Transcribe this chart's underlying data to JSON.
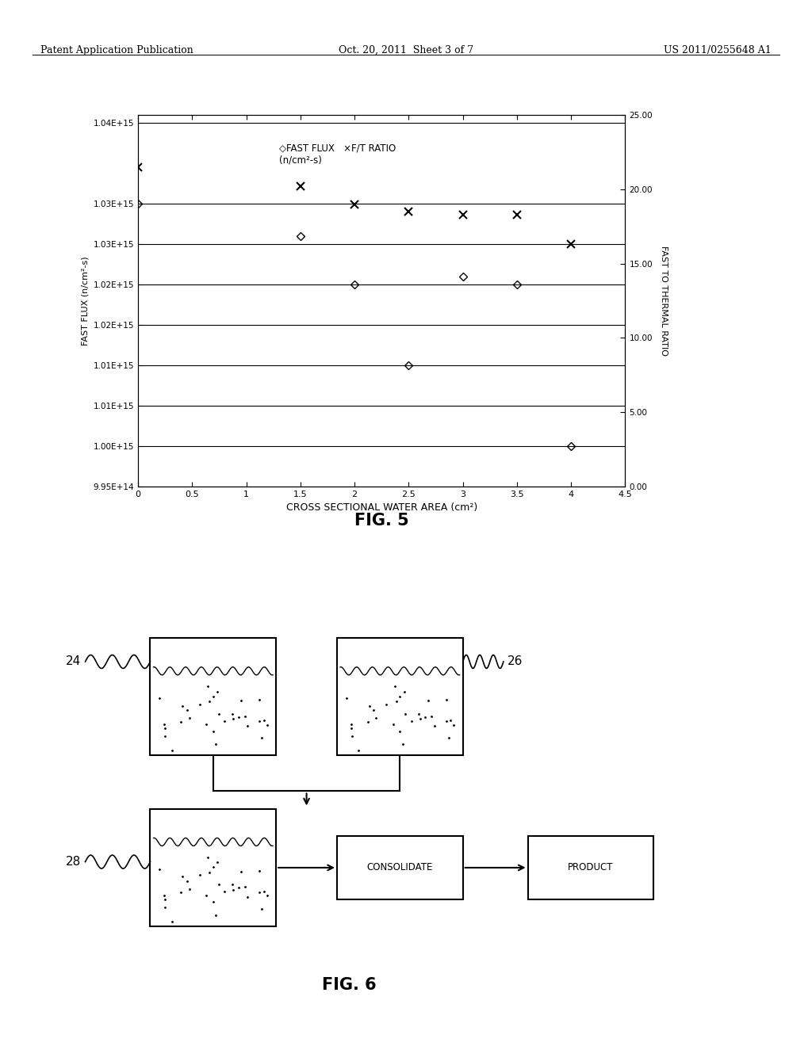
{
  "header_left": "Patent Application Publication",
  "header_center": "Oct. 20, 2011  Sheet 3 of 7",
  "header_right": "US 2011/0255648 A1",
  "fig5": {
    "fast_flux_x": [
      0,
      1.5,
      2.0,
      2.5,
      3.0,
      3.5,
      4.0
    ],
    "fast_flux_y": [
      1030000000000000.0,
      1026000000000000.0,
      1020000000000000.0,
      1010000000000000.0,
      1021000000000000.0,
      1020000000000000.0,
      1000000000000000.0
    ],
    "ft_ratio_x": [
      0,
      1.5,
      2.0,
      2.5,
      3.0,
      3.5,
      4.0
    ],
    "ft_ratio_y": [
      21.5,
      20.2,
      19.0,
      18.5,
      18.3,
      18.3,
      16.3
    ],
    "ylabel_left": "FAST FLUX (n/cm²-s)",
    "ylabel_right": "FAST TO THERMAL RATIO",
    "xlabel": "CROSS SECTIONAL WATER AREA (cm²)",
    "ylim_left": [
      995000000000000.0,
      1041000000000000.0
    ],
    "ylim_right": [
      0.0,
      25.0
    ],
    "xlim": [
      0,
      4.5
    ],
    "ytick_vals": [
      995000000000000.0,
      1000000000000000.0,
      1005000000000000.0,
      1010000000000000.0,
      1015000000000000.0,
      1020000000000000.0,
      1025000000000000.0,
      1030000000000000.0,
      1040000000000000.0
    ],
    "ytick_labels": [
      "9.95E+14",
      "1.00E+15",
      "1.01E+15",
      "1.01E+15",
      "1.02E+15",
      "1.02E+15",
      "1.03E+15",
      "1.03E+15",
      "1.04E+15"
    ],
    "yticks_right": [
      0.0,
      5.0,
      10.0,
      15.0,
      20.0,
      25.0
    ],
    "ytick_labels_right": [
      "0.00",
      "5.00",
      "10.00",
      "15.00",
      "20.00",
      "25.00"
    ],
    "xticks": [
      0,
      0.5,
      1,
      1.5,
      2,
      2.5,
      3,
      3.5,
      4,
      4.5
    ],
    "fig_label": "FIG. 5"
  },
  "fig6": {
    "label24": "24",
    "label26": "26",
    "label28": "28",
    "fig_label": "FIG. 6"
  },
  "background_color": "#ffffff",
  "text_color": "#000000"
}
